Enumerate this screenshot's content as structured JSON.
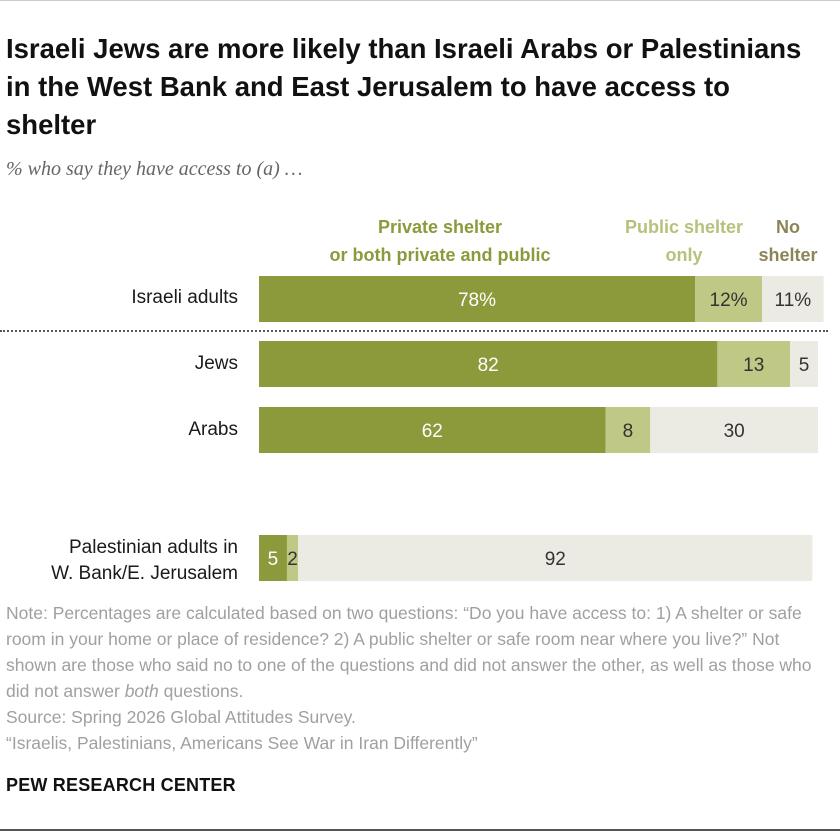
{
  "title": "Israeli Jews are more likely than Israeli Arabs or Palestinians in the West Bank and East Jerusalem to have access to shelter",
  "subtitle": "% who say they have access to (a) …",
  "colors": {
    "private": "#8c9a3c",
    "public": "#c0c886",
    "none": "#ecebe3",
    "legend_public": "#b8c17c",
    "legend_none": "#8c8557"
  },
  "chart_data": {
    "type": "bar",
    "orientation": "horizontal",
    "stacked": true,
    "title": "Israeli Jews are more likely than Israeli Arabs or Palestinians in the West Bank and East Jerusalem to have access to shelter",
    "xlim": [
      0,
      100
    ],
    "categories": [
      "Israeli adults",
      "Jews",
      "Arabs",
      "Palestinian adults in\nW.  Bank/E. Jerusalem"
    ],
    "series": [
      {
        "name": "Private shelter or both private and public",
        "values": [
          78,
          82,
          62,
          5
        ],
        "labels": [
          "78%",
          "82",
          "62",
          "5"
        ]
      },
      {
        "name": "Public shelter only",
        "values": [
          12,
          13,
          8,
          2
        ],
        "labels": [
          "12%",
          "13",
          "8",
          "2"
        ]
      },
      {
        "name": "No shelter",
        "values": [
          11,
          5,
          30,
          92
        ],
        "labels": [
          "11%",
          "5",
          "30",
          "92"
        ]
      }
    ]
  },
  "legend": {
    "private": "Private shelter\nor both private and public",
    "public": "Public shelter\nonly",
    "none": "No\nshelter"
  },
  "note": {
    "line1": "Note: Percentages are calculated based on two questions: “Do you have access to: 1) A shelter or safe room in your home or place of residence? 2) A public shelter or safe room near where you live?” Not shown are those who said no to one of the questions and did not answer the other, as well as those who did not answer ",
    "emph": "both",
    "line1_end": " questions.",
    "source": "Source: Spring 2026 Global Attitudes Survey.",
    "report": "“Israelis, Palestinians, Americans See War in Iran Differently”"
  },
  "brand": "PEW RESEARCH CENTER"
}
